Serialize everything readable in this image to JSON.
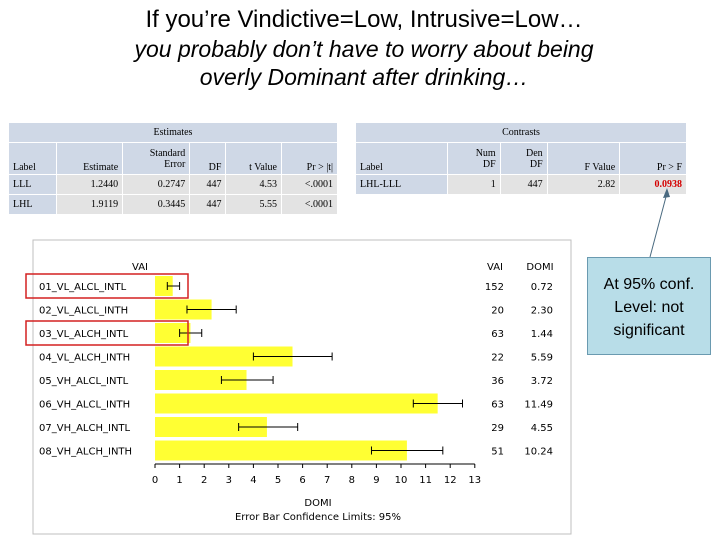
{
  "header": {
    "title_line1": "If you’re Vindictive=Low, Intrusive=Low…",
    "title_line2": "you probably don’t have to worry about being",
    "title_line3": "overly Dominant after drinking…"
  },
  "estimates": {
    "title": "Estimates",
    "col_label": "Label",
    "col_estimate": "Estimate",
    "col_se_line1": "Standard",
    "col_se_line2": "Error",
    "col_df": "DF",
    "col_t": "t Value",
    "col_p": "Pr > |t|",
    "rows": [
      {
        "label": "LLL",
        "estimate": "1.2440",
        "se": "0.2747",
        "df": "447",
        "t": "4.53",
        "p": "<.0001"
      },
      {
        "label": "LHL",
        "estimate": "1.9119",
        "se": "0.3445",
        "df": "447",
        "t": "5.55",
        "p": "<.0001"
      }
    ]
  },
  "contrasts": {
    "title": "Contrasts",
    "col_label": "Label",
    "col_numdf_line1": "Num",
    "col_numdf_line2": "DF",
    "col_dendf_line1": "Den",
    "col_dendf_line2": "DF",
    "col_f": "F Value",
    "col_p": "Pr > F",
    "rows": [
      {
        "label": "LHL-LLL",
        "numdf": "1",
        "dendf": "447",
        "f": "2.82",
        "p": "0.0938"
      }
    ],
    "sig_color": "#d40000"
  },
  "callout": {
    "line1": "At 95% conf.",
    "line2": "Level: not",
    "line3": "significant"
  },
  "chart_data": {
    "type": "bar",
    "orientation": "horizontal",
    "legend_label": "VAI",
    "col_vai": "VAI",
    "col_domi": "DOMI",
    "xlabel": "DOMI",
    "subtitle": "Error Bar Confidence Limits: 95%",
    "xlim": [
      0,
      13
    ],
    "xticks": [
      0,
      1,
      2,
      3,
      4,
      5,
      6,
      7,
      8,
      9,
      10,
      11,
      12,
      13
    ],
    "bar_color": "#ffff33",
    "categories": [
      "01_VL_ALCL_INTL",
      "02_VL_ALCL_INTH",
      "03_VL_ALCH_INTL",
      "04_VL_ALCH_INTH",
      "05_VH_ALCL_INTL",
      "06_VH_ALCL_INTH",
      "07_VH_ALCH_INTL",
      "08_VH_ALCH_INTH"
    ],
    "vai_counts": [
      "152",
      "20",
      "63",
      "22",
      "36",
      "63",
      "29",
      "51"
    ],
    "domi_labels": [
      "0.72",
      "2.30",
      "1.44",
      "5.59",
      "3.72",
      "11.49",
      "4.55",
      "10.24"
    ],
    "values": [
      0.72,
      2.3,
      1.44,
      5.59,
      3.72,
      11.49,
      4.55,
      10.24
    ],
    "err_lower": [
      0.5,
      1.3,
      1.0,
      4.0,
      2.7,
      10.5,
      3.4,
      8.8
    ],
    "err_upper": [
      1.0,
      3.3,
      1.9,
      7.2,
      4.8,
      12.5,
      5.8,
      11.7
    ],
    "highlighted": [
      "01_VL_ALCL_INTL",
      "03_VL_ALCH_INTL"
    ]
  }
}
